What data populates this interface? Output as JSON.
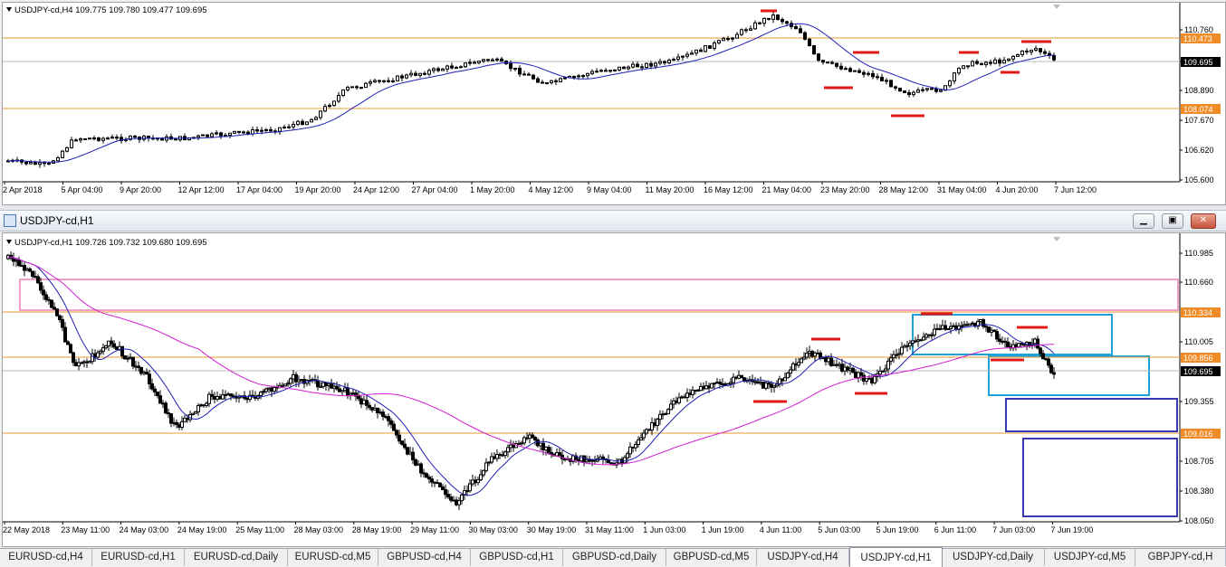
{
  "top_chart": {
    "header": "USDJPY-cd,H4  109.775 109.780 109.477 109.695",
    "price_labels": [
      "110.760",
      "109.695",
      "108.890",
      "107.670",
      "106.620",
      "105.600"
    ],
    "hlines": [
      {
        "label": "110.473",
        "color": "#e69a2e"
      },
      {
        "label": "108.074",
        "color": "#e69a2e"
      }
    ],
    "current_price": "109.695",
    "time_labels": [
      "2 Apr 2018",
      "5 Apr 04:00",
      "9 Apr 20:00",
      "12 Apr 12:00",
      "17 Apr 04:00",
      "19 Apr 20:00",
      "24 Apr 12:00",
      "27 Apr 04:00",
      "1 May 20:00",
      "4 May 12:00",
      "9 May 04:00",
      "11 May 20:00",
      "16 May 12:00",
      "21 May 04:00",
      "23 May 20:00",
      "28 May 12:00",
      "31 May 04:00",
      "4 Jun 20:00",
      "7 Jun 12:00"
    ],
    "seed": 7
  },
  "window": {
    "title": "USDJPY-cd,H1",
    "minimize_icon": "minimize-icon",
    "maximize_icon": "maximize-icon",
    "close_icon": "close-icon"
  },
  "bottom_chart": {
    "header": "USDJPY-cd,H1  109.726 109.732 109.680 109.695",
    "price_labels": [
      "110.985",
      "110.660",
      "110.005",
      "109.355",
      "108.705",
      "108.380",
      "108.050"
    ],
    "hlines": [
      {
        "label": "110.334",
        "color": "#e69a2e"
      },
      {
        "label": "109.856",
        "color": "#e69a2e"
      },
      {
        "label": "109.016",
        "color": "#e69a2e"
      }
    ],
    "current_price": "109.695",
    "time_labels": [
      "22 May 2018",
      "23 May 11:00",
      "24 May 03:00",
      "24 May 19:00",
      "25 May 11:00",
      "28 May 03:00",
      "28 May 19:00",
      "29 May 11:00",
      "30 May 03:00",
      "30 May 19:00",
      "31 May 11:00",
      "1 Jun 03:00",
      "1 Jun 19:00",
      "4 Jun 11:00",
      "5 Jun 03:00",
      "5 Jun 19:00",
      "6 Jun 11:00",
      "7 Jun 03:00",
      "7 Jun 19:00"
    ],
    "seed": 21
  },
  "colors": {
    "candle": "#000000",
    "ma_fast": "#1f1fb4",
    "ma_slow": "#d21fd2",
    "level": "#e69a2e",
    "red_mark": "#e01818",
    "pink_box": "#f0a0c8",
    "cyan_box": "#1ea0d8",
    "navy_box": "#3838b0",
    "price_tag": "#f08c28"
  },
  "tabs": [
    {
      "label": "EURUSD-cd,H4",
      "active": false
    },
    {
      "label": "EURUSD-cd,H1",
      "active": false
    },
    {
      "label": "EURUSD-cd,Daily",
      "active": false
    },
    {
      "label": "EURUSD-cd,M5",
      "active": false
    },
    {
      "label": "GBPUSD-cd,H4",
      "active": false
    },
    {
      "label": "GBPUSD-cd,H1",
      "active": false
    },
    {
      "label": "GBPUSD-cd,Daily",
      "active": false
    },
    {
      "label": "GBPUSD-cd,M5",
      "active": false
    },
    {
      "label": "USDJPY-cd,H4",
      "active": false
    },
    {
      "label": "USDJPY-cd,H1",
      "active": true
    },
    {
      "label": "USDJPY-cd,Daily",
      "active": false
    },
    {
      "label": "USDJPY-cd,M5",
      "active": false
    },
    {
      "label": "GBPJPY-cd,H",
      "active": false
    }
  ]
}
